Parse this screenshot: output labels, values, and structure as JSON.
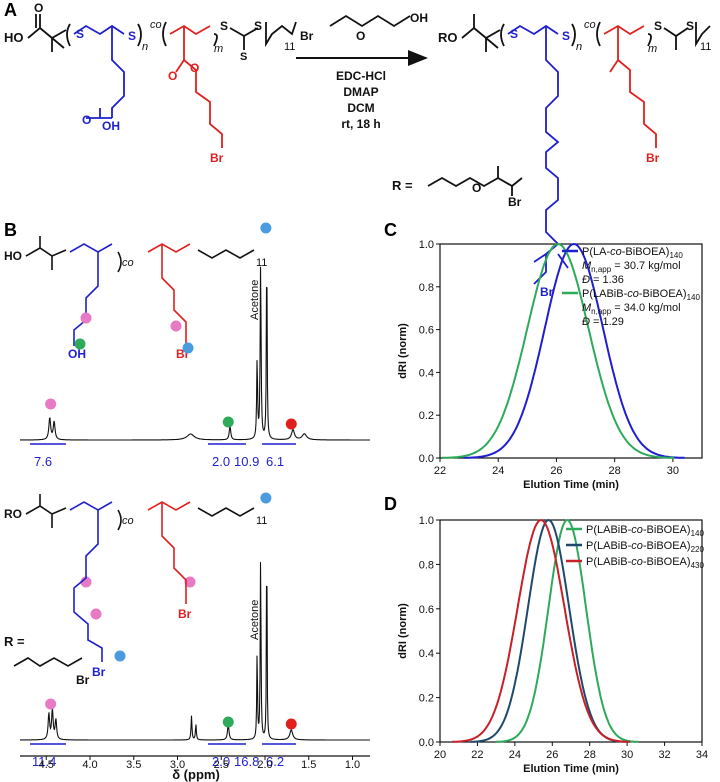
{
  "panels": {
    "A": "A",
    "B": "B",
    "C": "C",
    "D": "D"
  },
  "scheme": {
    "reagent_labels": [
      "EDC-HCl",
      "DMAP",
      "DCM",
      "rt, 18 h"
    ],
    "atoms": {
      "S": "S",
      "O": "O",
      "OH": "OH",
      "HO": "HO",
      "RO": "RO",
      "Br": "Br"
    },
    "subscripts": {
      "n": "n",
      "m": "m",
      "eleven": "11",
      "co": "co"
    },
    "r_label": "R ="
  },
  "nmr": {
    "xlabel": "δ (ppm)",
    "ticks": [
      "4.5",
      "4.0",
      "3.5",
      "3.0",
      "2.5",
      "2.0",
      "1.5",
      "1.0"
    ],
    "solvent": "Acetone",
    "top_integrals": [
      "7.6",
      "2.0",
      "10.9",
      "6.1"
    ],
    "bottom_integrals": [
      "11.4",
      "2.0",
      "16.8",
      "6.2"
    ],
    "r_label": "R ="
  },
  "colors": {
    "blue": "#1f1fd0",
    "red": "#e0201e",
    "pink": "#e879c4",
    "green": "#2daa5a",
    "lightblue": "#4a9be0",
    "black": "#111111"
  },
  "chart_data": [
    {
      "type": "line",
      "panel": "C",
      "xlabel": "Elution Time (min)",
      "ylabel": "dRI (norm)",
      "xlim": [
        22,
        31
      ],
      "ylim": [
        0,
        1.0
      ],
      "xticks": [
        22,
        24,
        26,
        28,
        30
      ],
      "yticks": [
        0.0,
        0.2,
        0.4,
        0.6,
        0.8,
        1.0
      ],
      "series": [
        {
          "name": "P(LA-co-BiBOEA)140",
          "color": "#1f1fd0",
          "peak": 26.6,
          "sigma": 1.0
        },
        {
          "name": "P(LABiB-co-BiBOEA)140",
          "color": "#2daa5a",
          "peak": 26.05,
          "sigma": 1.05
        }
      ],
      "legend": [
        {
          "prefix": "P(LA-",
          "italic": "co",
          "suffix": "-BiBOEA)",
          "sub": "140",
          "color": "#1f1fd0",
          "mn_value": " = 30.7 kg/mol",
          "d_value": " = 1.36"
        },
        {
          "prefix": "P(LABiB-",
          "italic": "co",
          "suffix": "-BiBOEA)",
          "sub": "140",
          "color": "#2daa5a",
          "mn_value": " = 34.0 kg/mol",
          "d_value": " = 1.29"
        }
      ],
      "mn_label": "M",
      "mn_sub": "n,app",
      "d_label": "Đ"
    },
    {
      "type": "line",
      "panel": "D",
      "xlabel": "Elution Time (min)",
      "ylabel": "dRI (norm)",
      "xlim": [
        20,
        34
      ],
      "ylim": [
        0,
        1.0
      ],
      "xticks": [
        20,
        22,
        24,
        26,
        28,
        30,
        32,
        34
      ],
      "yticks": [
        0.0,
        0.2,
        0.4,
        0.6,
        0.8,
        1.0
      ],
      "series": [
        {
          "name": "P(LABiB-co-BiBOEA)140",
          "color": "#2daa5a",
          "peak": 26.8,
          "sigma": 1.0
        },
        {
          "name": "P(LABiB-co-BiBOEA)220",
          "color": "#1c4a6e",
          "peak": 25.8,
          "sigma": 1.1
        },
        {
          "name": "P(LABiB-co-BiBOEA)430",
          "color": "#c8202a",
          "peak": 25.4,
          "sigma": 1.25
        }
      ],
      "legend": [
        {
          "prefix": "P(LABiB-",
          "italic": "co",
          "suffix": "-BiBOEA)",
          "sub": "140",
          "color": "#2daa5a"
        },
        {
          "prefix": "P(LABiB-",
          "italic": "co",
          "suffix": "-BiBOEA)",
          "sub": "220",
          "color": "#1c4a6e"
        },
        {
          "prefix": "P(LABiB-",
          "italic": "co",
          "suffix": "-BiBOEA)",
          "sub": "430",
          "color": "#c8202a"
        }
      ]
    }
  ]
}
